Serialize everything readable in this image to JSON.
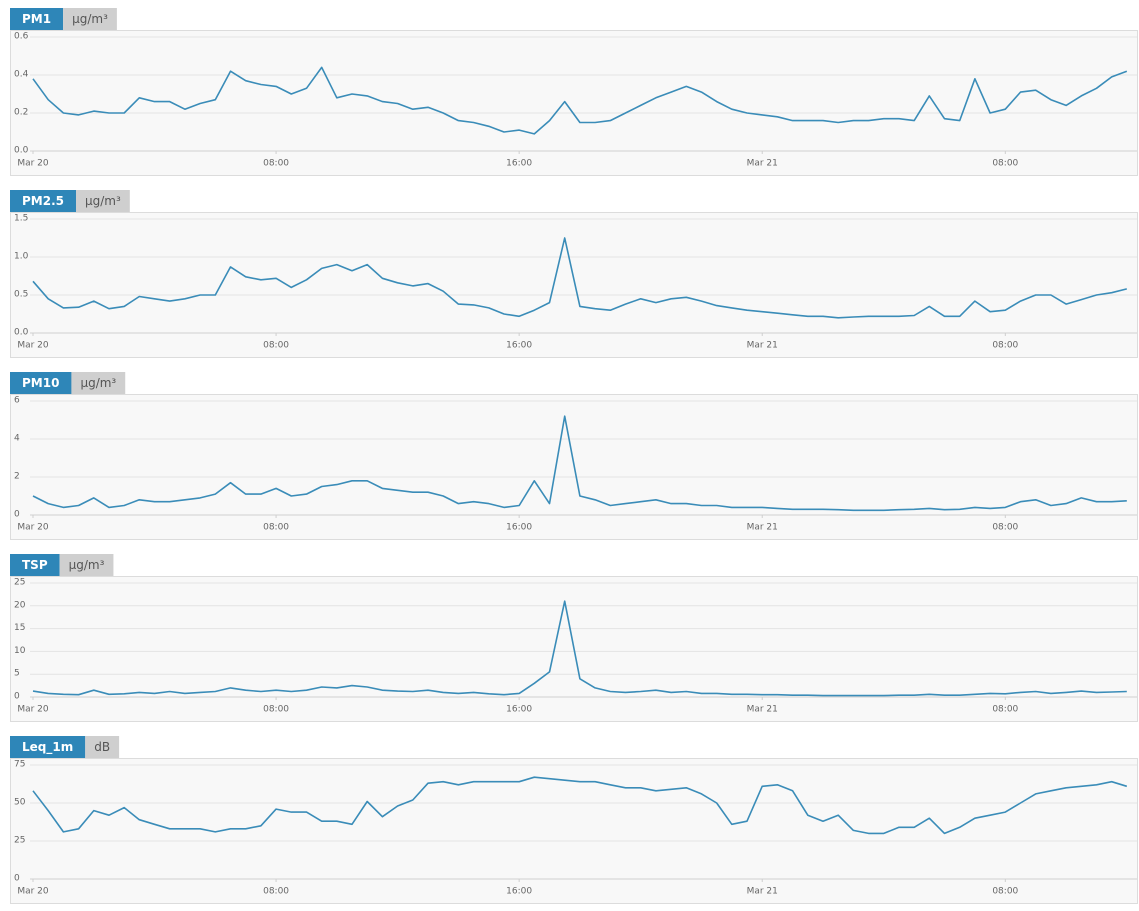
{
  "chart_data": [
    {
      "type": "line",
      "title": "PM1",
      "unit": "μg/m³",
      "color": "#3a8cb8",
      "grid": true,
      "x": [
        0,
        0.5,
        1,
        1.5,
        2,
        2.5,
        3,
        3.5,
        4,
        4.5,
        5,
        5.5,
        6,
        6.5,
        7,
        7.5,
        8,
        8.5,
        9,
        9.5,
        10,
        10.5,
        11,
        11.5,
        12,
        12.5,
        13,
        13.5,
        14,
        14.5,
        15,
        15.5,
        16,
        16.5,
        17,
        17.5,
        18,
        18.5,
        19,
        19.5,
        20,
        20.5,
        21,
        21.5,
        22,
        22.5,
        23,
        23.5,
        24,
        24.5,
        25,
        25.5,
        26,
        26.5,
        27,
        27.5,
        28,
        28.5,
        29,
        29.5,
        30,
        30.5,
        31,
        31.5,
        32,
        32.5,
        33,
        33.5,
        34,
        34.5,
        35,
        35.5,
        36
      ],
      "values": [
        0.38,
        0.27,
        0.2,
        0.19,
        0.21,
        0.2,
        0.2,
        0.28,
        0.26,
        0.26,
        0.22,
        0.25,
        0.27,
        0.42,
        0.37,
        0.35,
        0.34,
        0.3,
        0.33,
        0.44,
        0.28,
        0.3,
        0.29,
        0.26,
        0.25,
        0.22,
        0.23,
        0.2,
        0.16,
        0.15,
        0.13,
        0.1,
        0.11,
        0.09,
        0.16,
        0.26,
        0.15,
        0.15,
        0.16,
        0.2,
        0.24,
        0.28,
        0.31,
        0.34,
        0.31,
        0.26,
        0.22,
        0.2,
        0.19,
        0.18,
        0.16,
        0.16,
        0.16,
        0.15,
        0.16,
        0.16,
        0.17,
        0.17,
        0.16,
        0.29,
        0.17,
        0.16,
        0.38,
        0.2,
        0.22,
        0.31,
        0.32,
        0.27,
        0.24,
        0.29,
        0.33,
        0.39,
        0.42
      ],
      "xlim": [
        0,
        36.4
      ],
      "xticks": [
        {
          "value": 0,
          "label": "Mar 20"
        },
        {
          "value": 8,
          "label": "08:00"
        },
        {
          "value": 16,
          "label": "16:00"
        },
        {
          "value": 24,
          "label": "Mar 21"
        },
        {
          "value": 32,
          "label": "08:00"
        }
      ],
      "ylim": [
        0,
        0.6
      ],
      "yticks": [
        {
          "value": 0,
          "label": "0.0"
        },
        0.2,
        0.4,
        0.6
      ]
    },
    {
      "type": "line",
      "title": "PM2.5",
      "unit": "μg/m³",
      "color": "#3a8cb8",
      "grid": true,
      "x": [
        0,
        0.5,
        1,
        1.5,
        2,
        2.5,
        3,
        3.5,
        4,
        4.5,
        5,
        5.5,
        6,
        6.5,
        7,
        7.5,
        8,
        8.5,
        9,
        9.5,
        10,
        10.5,
        11,
        11.5,
        12,
        12.5,
        13,
        13.5,
        14,
        14.5,
        15,
        15.5,
        16,
        16.5,
        17,
        17.5,
        18,
        18.5,
        19,
        19.5,
        20,
        20.5,
        21,
        21.5,
        22,
        22.5,
        23,
        23.5,
        24,
        24.5,
        25,
        25.5,
        26,
        26.5,
        27,
        27.5,
        28,
        28.5,
        29,
        29.5,
        30,
        30.5,
        31,
        31.5,
        32,
        32.5,
        33,
        33.5,
        34,
        34.5,
        35,
        35.5,
        36
      ],
      "values": [
        0.68,
        0.45,
        0.33,
        0.34,
        0.42,
        0.32,
        0.35,
        0.48,
        0.45,
        0.42,
        0.45,
        0.5,
        0.5,
        0.87,
        0.74,
        0.7,
        0.72,
        0.6,
        0.7,
        0.85,
        0.9,
        0.82,
        0.9,
        0.72,
        0.66,
        0.62,
        0.65,
        0.55,
        0.38,
        0.37,
        0.33,
        0.25,
        0.22,
        0.3,
        0.4,
        1.25,
        0.35,
        0.32,
        0.3,
        0.38,
        0.45,
        0.4,
        0.45,
        0.47,
        0.42,
        0.36,
        0.33,
        0.3,
        0.28,
        0.26,
        0.24,
        0.22,
        0.22,
        0.2,
        0.21,
        0.22,
        0.22,
        0.22,
        0.23,
        0.35,
        0.22,
        0.22,
        0.42,
        0.28,
        0.3,
        0.42,
        0.5,
        0.5,
        0.38,
        0.44,
        0.5,
        0.53,
        0.58
      ],
      "xlim": [
        0,
        36.4
      ],
      "xticks": [
        {
          "value": 0,
          "label": "Mar 20"
        },
        {
          "value": 8,
          "label": "08:00"
        },
        {
          "value": 16,
          "label": "16:00"
        },
        {
          "value": 24,
          "label": "Mar 21"
        },
        {
          "value": 32,
          "label": "08:00"
        }
      ],
      "ylim": [
        0,
        1.5
      ],
      "yticks": [
        {
          "value": 0,
          "label": "0.0"
        },
        0.5,
        {
          "value": 1,
          "label": "1.0"
        },
        1.5
      ]
    },
    {
      "type": "line",
      "title": "PM10",
      "unit": "μg/m³",
      "color": "#3a8cb8",
      "grid": true,
      "x": [
        0,
        0.5,
        1,
        1.5,
        2,
        2.5,
        3,
        3.5,
        4,
        4.5,
        5,
        5.5,
        6,
        6.5,
        7,
        7.5,
        8,
        8.5,
        9,
        9.5,
        10,
        10.5,
        11,
        11.5,
        12,
        12.5,
        13,
        13.5,
        14,
        14.5,
        15,
        15.5,
        16,
        16.5,
        17,
        17.5,
        18,
        18.5,
        19,
        19.5,
        20,
        20.5,
        21,
        21.5,
        22,
        22.5,
        23,
        23.5,
        24,
        24.5,
        25,
        25.5,
        26,
        26.5,
        27,
        27.5,
        28,
        28.5,
        29,
        29.5,
        30,
        30.5,
        31,
        31.5,
        32,
        32.5,
        33,
        33.5,
        34,
        34.5,
        35,
        35.5,
        36
      ],
      "values": [
        1.0,
        0.6,
        0.4,
        0.5,
        0.9,
        0.4,
        0.5,
        0.8,
        0.7,
        0.7,
        0.8,
        0.9,
        1.1,
        1.7,
        1.1,
        1.1,
        1.4,
        1.0,
        1.1,
        1.5,
        1.6,
        1.8,
        1.8,
        1.4,
        1.3,
        1.2,
        1.2,
        1.0,
        0.6,
        0.7,
        0.6,
        0.4,
        0.5,
        1.8,
        0.6,
        5.2,
        1.0,
        0.8,
        0.5,
        0.6,
        0.7,
        0.8,
        0.6,
        0.6,
        0.5,
        0.5,
        0.4,
        0.4,
        0.4,
        0.35,
        0.3,
        0.3,
        0.3,
        0.28,
        0.25,
        0.25,
        0.25,
        0.28,
        0.3,
        0.35,
        0.28,
        0.3,
        0.4,
        0.35,
        0.4,
        0.7,
        0.8,
        0.5,
        0.6,
        0.9,
        0.7,
        0.7,
        0.75
      ],
      "xlim": [
        0,
        36.4
      ],
      "xticks": [
        {
          "value": 0,
          "label": "Mar 20"
        },
        {
          "value": 8,
          "label": "08:00"
        },
        {
          "value": 16,
          "label": "16:00"
        },
        {
          "value": 24,
          "label": "Mar 21"
        },
        {
          "value": 32,
          "label": "08:00"
        }
      ],
      "ylim": [
        0,
        6
      ],
      "yticks": [
        0,
        2,
        4,
        6
      ]
    },
    {
      "type": "line",
      "title": "TSP",
      "unit": "μg/m³",
      "color": "#3a8cb8",
      "grid": true,
      "x": [
        0,
        0.5,
        1,
        1.5,
        2,
        2.5,
        3,
        3.5,
        4,
        4.5,
        5,
        5.5,
        6,
        6.5,
        7,
        7.5,
        8,
        8.5,
        9,
        9.5,
        10,
        10.5,
        11,
        11.5,
        12,
        12.5,
        13,
        13.5,
        14,
        14.5,
        15,
        15.5,
        16,
        16.5,
        17,
        17.5,
        18,
        18.5,
        19,
        19.5,
        20,
        20.5,
        21,
        21.5,
        22,
        22.5,
        23,
        23.5,
        24,
        24.5,
        25,
        25.5,
        26,
        26.5,
        27,
        27.5,
        28,
        28.5,
        29,
        29.5,
        30,
        30.5,
        31,
        31.5,
        32,
        32.5,
        33,
        33.5,
        34,
        34.5,
        35,
        35.5,
        36
      ],
      "values": [
        1.3,
        0.8,
        0.6,
        0.5,
        1.5,
        0.6,
        0.7,
        1.0,
        0.8,
        1.2,
        0.8,
        1.0,
        1.2,
        2.0,
        1.5,
        1.2,
        1.5,
        1.2,
        1.5,
        2.2,
        2.0,
        2.5,
        2.2,
        1.5,
        1.3,
        1.2,
        1.5,
        1.0,
        0.8,
        1.0,
        0.7,
        0.5,
        0.8,
        3.0,
        5.5,
        21,
        4.0,
        2.0,
        1.2,
        1.0,
        1.2,
        1.5,
        1.0,
        1.2,
        0.8,
        0.8,
        0.6,
        0.6,
        0.5,
        0.5,
        0.4,
        0.4,
        0.3,
        0.3,
        0.3,
        0.3,
        0.3,
        0.4,
        0.4,
        0.6,
        0.4,
        0.4,
        0.6,
        0.8,
        0.7,
        1.0,
        1.2,
        0.8,
        1.0,
        1.3,
        1.0,
        1.1,
        1.2
      ],
      "xlim": [
        0,
        36.4
      ],
      "xticks": [
        {
          "value": 0,
          "label": "Mar 20"
        },
        {
          "value": 8,
          "label": "08:00"
        },
        {
          "value": 16,
          "label": "16:00"
        },
        {
          "value": 24,
          "label": "Mar 21"
        },
        {
          "value": 32,
          "label": "08:00"
        }
      ],
      "ylim": [
        0,
        25
      ],
      "yticks": [
        0,
        5,
        10,
        15,
        20,
        25
      ]
    },
    {
      "type": "line",
      "title": "Leq_1m",
      "unit": "dB",
      "color": "#3a8cb8",
      "grid": true,
      "x": [
        0,
        0.5,
        1,
        1.5,
        2,
        2.5,
        3,
        3.5,
        4,
        4.5,
        5,
        5.5,
        6,
        6.5,
        7,
        7.5,
        8,
        8.5,
        9,
        9.5,
        10,
        10.5,
        11,
        11.5,
        12,
        12.5,
        13,
        13.5,
        14,
        14.5,
        15,
        15.5,
        16,
        16.5,
        17,
        17.5,
        18,
        18.5,
        19,
        19.5,
        20,
        20.5,
        21,
        21.5,
        22,
        22.5,
        23,
        23.5,
        24,
        24.5,
        25,
        25.5,
        26,
        26.5,
        27,
        27.5,
        28,
        28.5,
        29,
        29.5,
        30,
        30.5,
        31,
        31.5,
        32,
        32.5,
        33,
        33.5,
        34,
        34.5,
        35,
        35.5,
        36
      ],
      "values": [
        58,
        45,
        31,
        33,
        45,
        42,
        47,
        39,
        36,
        33,
        33,
        33,
        31,
        33,
        33,
        35,
        46,
        44,
        44,
        38,
        38,
        36,
        51,
        41,
        48,
        52,
        63,
        64,
        62,
        64,
        64,
        64,
        64,
        67,
        66,
        65,
        64,
        64,
        62,
        60,
        60,
        58,
        59,
        60,
        56,
        50,
        36,
        38,
        61,
        62,
        58,
        42,
        38,
        42,
        32,
        30,
        30,
        34,
        34,
        40,
        30,
        34,
        40,
        42,
        44,
        50,
        56,
        58,
        60,
        61,
        62,
        64,
        61
      ],
      "xlim": [
        0,
        36.4
      ],
      "xticks": [
        {
          "value": 0,
          "label": "Mar 20"
        },
        {
          "value": 8,
          "label": "08:00"
        },
        {
          "value": 16,
          "label": "16:00"
        },
        {
          "value": 24,
          "label": "Mar 21"
        },
        {
          "value": 32,
          "label": "08:00"
        }
      ],
      "ylim": [
        0,
        75
      ],
      "yticks": [
        0,
        25,
        50,
        75
      ]
    }
  ]
}
